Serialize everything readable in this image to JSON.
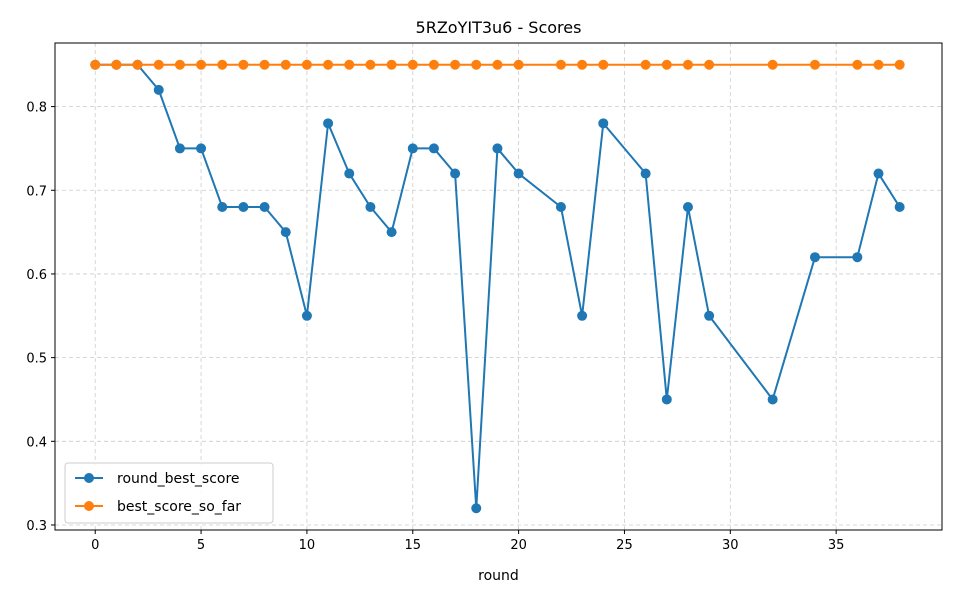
{
  "chart_data": {
    "type": "line",
    "title": "5RZoYIT3u6 - Scores",
    "xlabel": "round",
    "ylabel": "",
    "xlim": [
      -1.9,
      40.0
    ],
    "ylim": [
      0.294,
      0.876
    ],
    "xticks": [
      0,
      5,
      10,
      15,
      20,
      25,
      30,
      35
    ],
    "yticks": [
      0.3,
      0.4,
      0.5,
      0.6,
      0.7,
      0.8
    ],
    "grid": true,
    "legend_position": "lower-left",
    "series": [
      {
        "name": "round_best_score",
        "color": "#1f77b4",
        "x": [
          0,
          1,
          2,
          3,
          4,
          5,
          6,
          7,
          8,
          9,
          10,
          11,
          12,
          13,
          14,
          15,
          16,
          17,
          18,
          19,
          20,
          22,
          23,
          24,
          26,
          27,
          28,
          29,
          32,
          34,
          36,
          37,
          38
        ],
        "y": [
          0.85,
          0.85,
          0.85,
          0.82,
          0.75,
          0.75,
          0.68,
          0.68,
          0.68,
          0.65,
          0.55,
          0.78,
          0.72,
          0.68,
          0.65,
          0.75,
          0.75,
          0.72,
          0.32,
          0.75,
          0.72,
          0.68,
          0.55,
          0.78,
          0.72,
          0.45,
          0.68,
          0.55,
          0.45,
          0.62,
          0.62,
          0.72,
          0.68
        ]
      },
      {
        "name": "best_score_so_far",
        "color": "#ff7f0e",
        "x": [
          0,
          1,
          2,
          3,
          4,
          5,
          6,
          7,
          8,
          9,
          10,
          11,
          12,
          13,
          14,
          15,
          16,
          17,
          18,
          19,
          20,
          22,
          23,
          24,
          26,
          27,
          28,
          29,
          32,
          34,
          36,
          37,
          38
        ],
        "y": [
          0.85,
          0.85,
          0.85,
          0.85,
          0.85,
          0.85,
          0.85,
          0.85,
          0.85,
          0.85,
          0.85,
          0.85,
          0.85,
          0.85,
          0.85,
          0.85,
          0.85,
          0.85,
          0.85,
          0.85,
          0.85,
          0.85,
          0.85,
          0.85,
          0.85,
          0.85,
          0.85,
          0.85,
          0.85,
          0.85,
          0.85,
          0.85,
          0.85
        ]
      }
    ]
  }
}
